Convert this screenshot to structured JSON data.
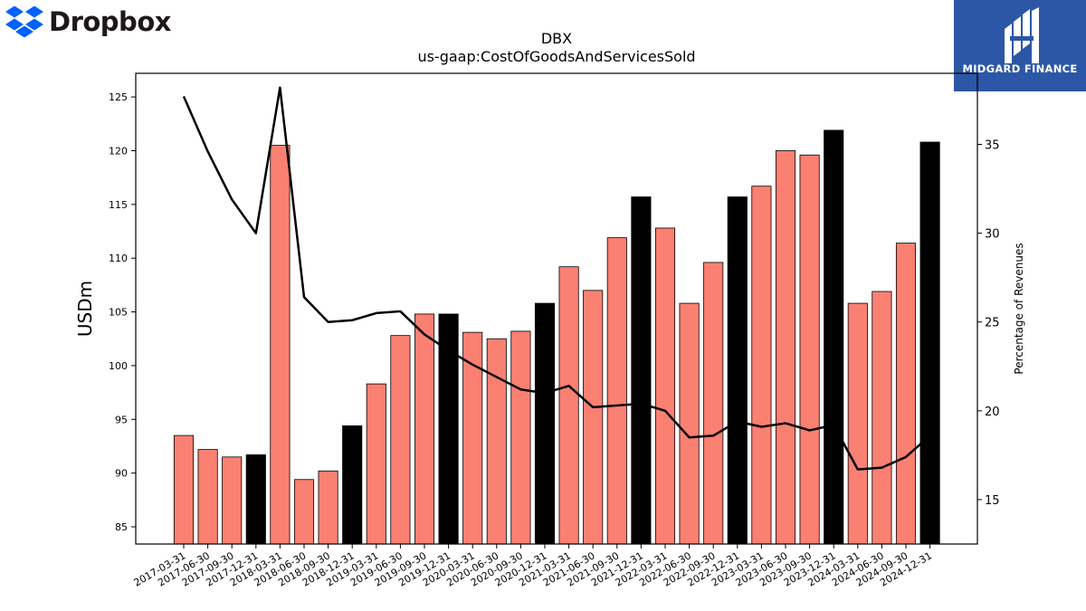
{
  "brand": {
    "name": "Dropbox",
    "logo_icon": "dropbox-logo-icon",
    "logo_color": "#0061fe"
  },
  "badge": {
    "name": "MIDGARD FINANCE",
    "logo_icon": "midgard-logo-icon",
    "color": "#2b57a6"
  },
  "chart_data": {
    "type": "bar",
    "title": "DBX",
    "subtitle": "us-gaap:CostOfGoodsAndServicesSold",
    "ylabel": "USDm",
    "y2label": "Percentage of Revenues",
    "ylim": [
      83.4,
      127.2
    ],
    "y2lim": [
      12.5,
      39.0
    ],
    "yticks": [
      85,
      90,
      95,
      100,
      105,
      110,
      115,
      120,
      125
    ],
    "y2ticks": [
      15,
      20,
      25,
      30,
      35
    ],
    "bar_color": "#fa8072",
    "highlight_color": "#000000",
    "categories": [
      "2017-03-31",
      "2017-06-30",
      "2017-09-30",
      "2017-12-31",
      "2018-03-31",
      "2018-06-30",
      "2018-09-30",
      "2018-12-31",
      "2019-03-31",
      "2019-06-30",
      "2019-09-30",
      "2019-12-31",
      "2020-03-31",
      "2020-06-30",
      "2020-09-30",
      "2020-12-31",
      "2021-03-31",
      "2021-06-30",
      "2021-09-30",
      "2021-12-31",
      "2022-03-31",
      "2022-06-30",
      "2022-09-30",
      "2022-12-31",
      "2023-03-31",
      "2023-06-30",
      "2023-09-30",
      "2023-12-31",
      "2024-03-31",
      "2024-06-30",
      "2024-09-30",
      "2024-12-31"
    ],
    "series": [
      {
        "type": "bar",
        "axis": "left",
        "values": [
          93.5,
          92.2,
          91.5,
          91.7,
          120.5,
          89.4,
          90.2,
          94.4,
          98.3,
          102.8,
          104.8,
          104.8,
          103.1,
          102.5,
          103.2,
          105.8,
          109.2,
          107.0,
          111.9,
          115.7,
          112.8,
          105.8,
          109.6,
          115.7,
          116.7,
          120.0,
          119.6,
          121.9,
          105.8,
          106.9,
          111.4,
          120.8
        ],
        "highlight": [
          false,
          false,
          false,
          true,
          false,
          false,
          false,
          true,
          false,
          false,
          false,
          true,
          false,
          false,
          false,
          true,
          false,
          false,
          false,
          true,
          false,
          false,
          false,
          true,
          false,
          false,
          false,
          true,
          false,
          false,
          false,
          true
        ]
      },
      {
        "type": "line",
        "axis": "right",
        "color": "#000000",
        "values": [
          37.7,
          34.6,
          31.9,
          30.0,
          38.2,
          26.4,
          25.0,
          25.1,
          25.5,
          25.6,
          24.3,
          23.4,
          22.6,
          21.9,
          21.2,
          21.0,
          21.4,
          20.2,
          20.3,
          20.4,
          20.0,
          18.5,
          18.6,
          19.4,
          19.1,
          19.3,
          18.9,
          19.2,
          16.7,
          16.8,
          17.4,
          18.6
        ]
      }
    ]
  }
}
